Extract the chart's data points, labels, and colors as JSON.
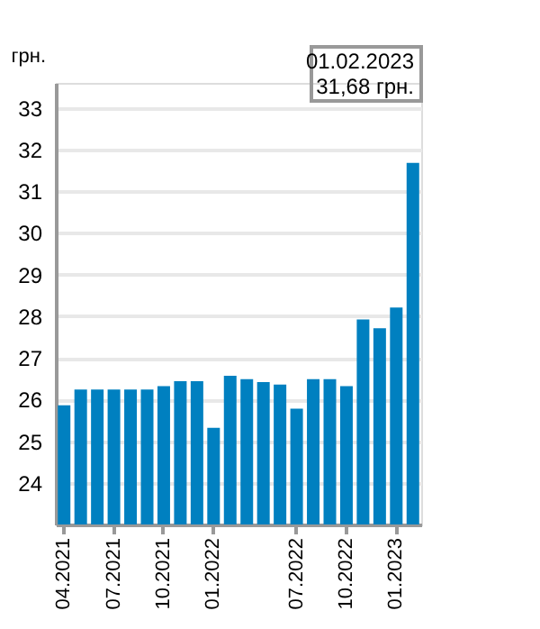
{
  "chart_data": {
    "type": "bar",
    "ylabel": "грн.",
    "categories": [
      "04.2021",
      null,
      null,
      "07.2021",
      null,
      null,
      "10.2021",
      null,
      null,
      "01.2022",
      null,
      null,
      null,
      null,
      "07.2022",
      null,
      null,
      "10.2022",
      null,
      null,
      "01.2023",
      null
    ],
    "values": [
      25.86,
      26.24,
      26.24,
      26.24,
      26.24,
      26.24,
      26.32,
      26.44,
      26.44,
      25.32,
      26.57,
      26.49,
      26.42,
      26.36,
      25.78,
      26.49,
      26.49,
      26.32,
      27.92,
      27.71,
      28.21,
      31.68
    ],
    "color": "#0080c0",
    "ylim": [
      23,
      33.6
    ],
    "yticks": [
      24,
      25,
      26,
      27,
      28,
      29,
      30,
      31,
      32,
      33
    ],
    "grid": "y",
    "annotations": [
      "01.02.2023\n31,68 грн."
    ]
  }
}
